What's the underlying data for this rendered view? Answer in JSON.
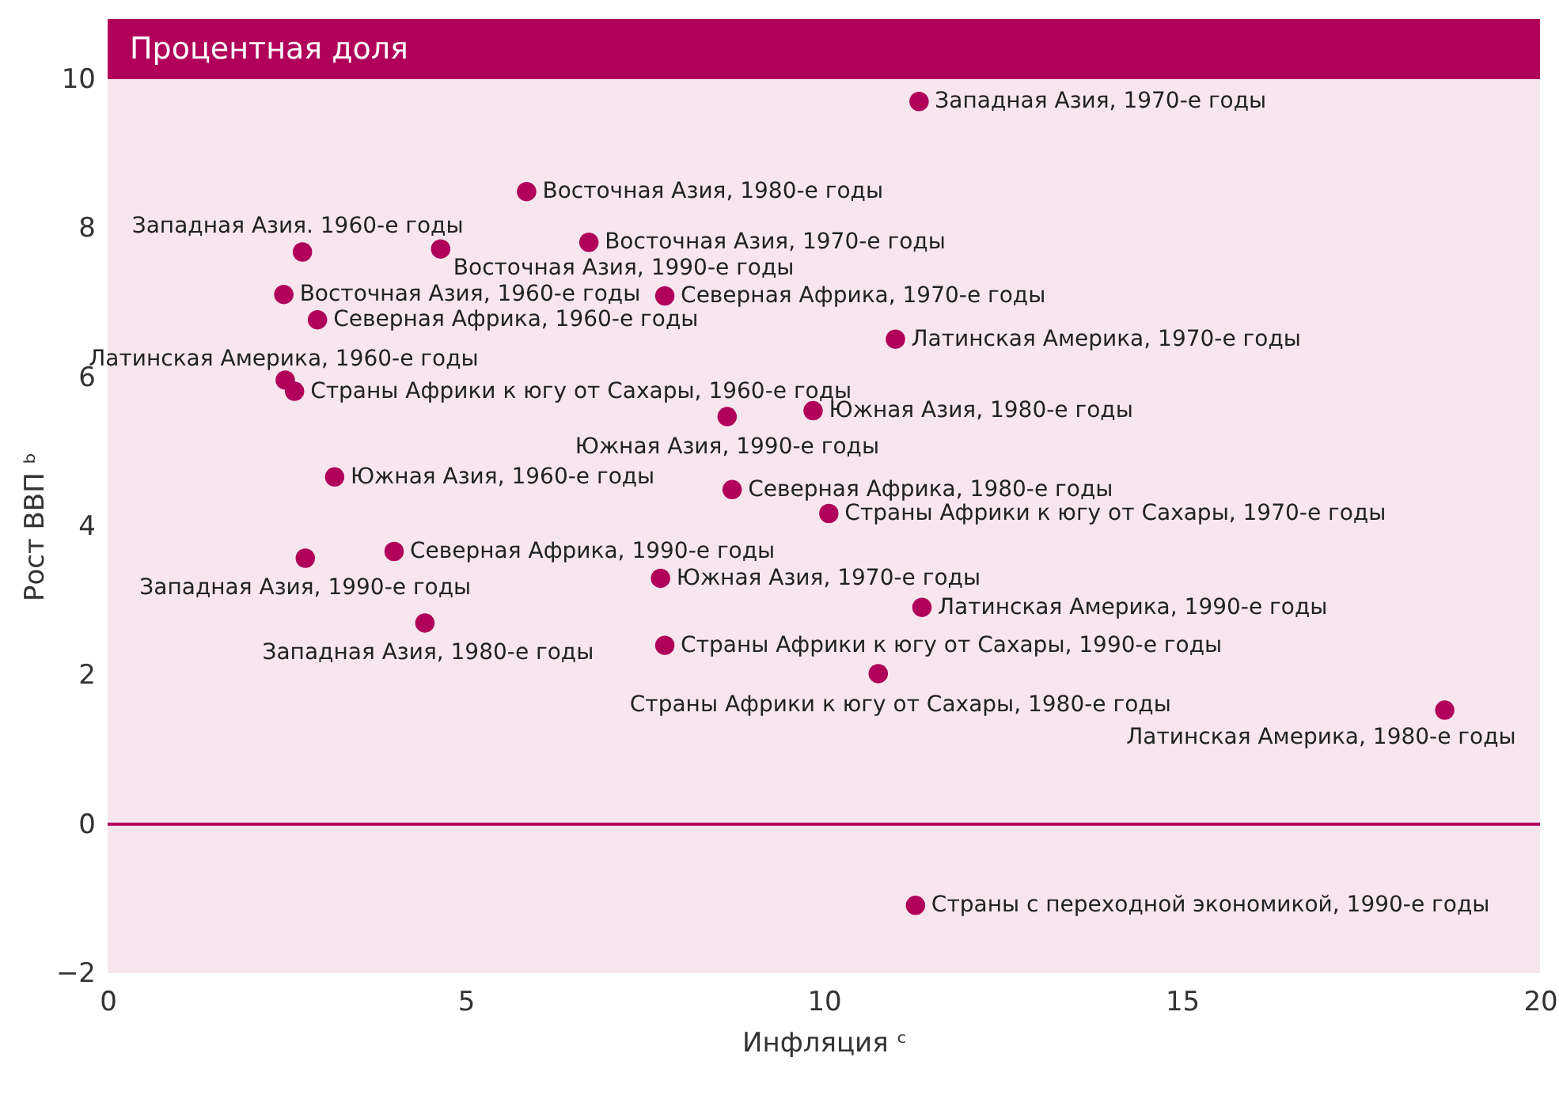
{
  "chart_data": {
    "type": "scatter",
    "title": "Процентная доля",
    "xlabel": "Инфляция ᶜ",
    "ylabel": "Рост ВВП ᵇ",
    "xlim": [
      0,
      20
    ],
    "xticks": [
      0,
      5,
      10,
      15,
      20
    ],
    "ylim": [
      -2,
      10
    ],
    "yticks": [
      -2,
      0,
      2,
      4,
      6,
      8,
      10
    ],
    "marker": "circle",
    "series": [
      {
        "color": "#b0005a",
        "x": [
          11.33,
          5.85,
          2.72,
          4.65,
          6.72,
          2.46,
          7.78,
          2.93,
          11.0,
          2.48,
          2.61,
          8.65,
          9.85,
          3.17,
          8.72,
          10.07,
          2.76,
          4.0,
          7.72,
          11.37,
          4.43,
          7.78,
          10.76,
          18.67,
          11.28
        ],
        "values": [
          9.7,
          8.49,
          7.68,
          7.72,
          7.81,
          7.11,
          7.09,
          6.77,
          6.51,
          5.96,
          5.81,
          5.47,
          5.55,
          4.66,
          4.49,
          4.17,
          3.57,
          3.66,
          3.3,
          2.91,
          2.7,
          2.4,
          2.02,
          1.53,
          -1.09
        ]
      }
    ],
    "ref_lines": [
      {
        "axis": "y",
        "value": 0,
        "color": "#b0005a"
      }
    ],
    "annotations": [
      {
        "text": "Западная Азия, 1970-е годы",
        "x": 11.33,
        "y": 9.7
      },
      {
        "text": "Восточная Азия, 1980-е годы",
        "x": 5.85,
        "y": 8.49
      },
      {
        "text": "Западная Азия. 1960-е годы",
        "x": 2.72,
        "y": 7.68
      },
      {
        "text": "Восточная Азия, 1990-е годы",
        "x": 4.65,
        "y": 7.72
      },
      {
        "text": "Восточная Азия, 1970-е годы",
        "x": 6.72,
        "y": 7.81
      },
      {
        "text": "Восточная Азия, 1960-е годы",
        "x": 2.46,
        "y": 7.11
      },
      {
        "text": "Северная Африка, 1970-е годы",
        "x": 7.78,
        "y": 7.09
      },
      {
        "text": "Северная Африка, 1960-е годы",
        "x": 2.93,
        "y": 6.77
      },
      {
        "text": "Латинская Америка, 1970-е годы",
        "x": 11.0,
        "y": 6.51
      },
      {
        "text": "Латинская Америка, 1960-е годы",
        "x": 2.48,
        "y": 5.96
      },
      {
        "text": "Страны Африки к югу от Сахары, 1960-е годы",
        "x": 2.61,
        "y": 5.81
      },
      {
        "text": "Южная Азия, 1990-е годы",
        "x": 8.65,
        "y": 5.47
      },
      {
        "text": "Южная Азия, 1980-е годы",
        "x": 9.85,
        "y": 5.55
      },
      {
        "text": "Южная Азия, 1960-е годы",
        "x": 3.17,
        "y": 4.66
      },
      {
        "text": "Северная Африка, 1980-е годы",
        "x": 8.72,
        "y": 4.49
      },
      {
        "text": "Страны Африки к югу от Сахары, 1970-е годы",
        "x": 10.07,
        "y": 4.17
      },
      {
        "text": "Западная Азия, 1990-е годы",
        "x": 2.76,
        "y": 3.57
      },
      {
        "text": "Северная Африка, 1990-е годы",
        "x": 4.0,
        "y": 3.66
      },
      {
        "text": "Южная Азия, 1970-е годы",
        "x": 7.72,
        "y": 3.3
      },
      {
        "text": "Латинская Америка, 1990-е годы",
        "x": 11.37,
        "y": 2.91
      },
      {
        "text": "Западная Азия, 1980-е годы",
        "x": 4.43,
        "y": 2.7
      },
      {
        "text": "Страны Африки к югу от Сахары, 1990-е годы",
        "x": 7.78,
        "y": 2.4
      },
      {
        "text": "Страны Африки к югу от Сахары, 1980-е годы",
        "x": 10.76,
        "y": 2.02
      },
      {
        "text": "Латинская Америка, 1980-е годы",
        "x": 18.67,
        "y": 1.53
      },
      {
        "text": "Страны с переходной экономикой, 1990-е годы",
        "x": 11.28,
        "y": -1.09
      }
    ]
  }
}
